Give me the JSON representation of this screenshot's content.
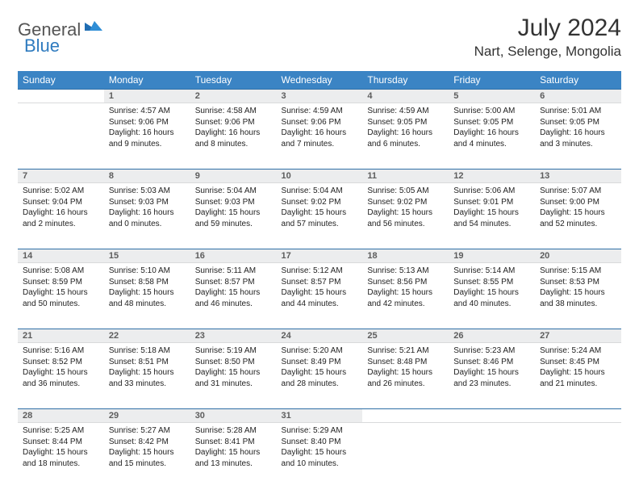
{
  "logo": {
    "part1": "General",
    "part2": "Blue"
  },
  "title": "July 2024",
  "location": "Nart, Selenge, Mongolia",
  "header_bg": "#3b84c4",
  "day_headers": [
    "Sunday",
    "Monday",
    "Tuesday",
    "Wednesday",
    "Thursday",
    "Friday",
    "Saturday"
  ],
  "weeks": [
    {
      "nums": [
        "",
        "1",
        "2",
        "3",
        "4",
        "5",
        "6"
      ],
      "cells": [
        null,
        {
          "sunrise": "4:57 AM",
          "sunset": "9:06 PM",
          "daylight": "16 hours and 9 minutes."
        },
        {
          "sunrise": "4:58 AM",
          "sunset": "9:06 PM",
          "daylight": "16 hours and 8 minutes."
        },
        {
          "sunrise": "4:59 AM",
          "sunset": "9:06 PM",
          "daylight": "16 hours and 7 minutes."
        },
        {
          "sunrise": "4:59 AM",
          "sunset": "9:05 PM",
          "daylight": "16 hours and 6 minutes."
        },
        {
          "sunrise": "5:00 AM",
          "sunset": "9:05 PM",
          "daylight": "16 hours and 4 minutes."
        },
        {
          "sunrise": "5:01 AM",
          "sunset": "9:05 PM",
          "daylight": "16 hours and 3 minutes."
        }
      ]
    },
    {
      "nums": [
        "7",
        "8",
        "9",
        "10",
        "11",
        "12",
        "13"
      ],
      "cells": [
        {
          "sunrise": "5:02 AM",
          "sunset": "9:04 PM",
          "daylight": "16 hours and 2 minutes."
        },
        {
          "sunrise": "5:03 AM",
          "sunset": "9:03 PM",
          "daylight": "16 hours and 0 minutes."
        },
        {
          "sunrise": "5:04 AM",
          "sunset": "9:03 PM",
          "daylight": "15 hours and 59 minutes."
        },
        {
          "sunrise": "5:04 AM",
          "sunset": "9:02 PM",
          "daylight": "15 hours and 57 minutes."
        },
        {
          "sunrise": "5:05 AM",
          "sunset": "9:02 PM",
          "daylight": "15 hours and 56 minutes."
        },
        {
          "sunrise": "5:06 AM",
          "sunset": "9:01 PM",
          "daylight": "15 hours and 54 minutes."
        },
        {
          "sunrise": "5:07 AM",
          "sunset": "9:00 PM",
          "daylight": "15 hours and 52 minutes."
        }
      ]
    },
    {
      "nums": [
        "14",
        "15",
        "16",
        "17",
        "18",
        "19",
        "20"
      ],
      "cells": [
        {
          "sunrise": "5:08 AM",
          "sunset": "8:59 PM",
          "daylight": "15 hours and 50 minutes."
        },
        {
          "sunrise": "5:10 AM",
          "sunset": "8:58 PM",
          "daylight": "15 hours and 48 minutes."
        },
        {
          "sunrise": "5:11 AM",
          "sunset": "8:57 PM",
          "daylight": "15 hours and 46 minutes."
        },
        {
          "sunrise": "5:12 AM",
          "sunset": "8:57 PM",
          "daylight": "15 hours and 44 minutes."
        },
        {
          "sunrise": "5:13 AM",
          "sunset": "8:56 PM",
          "daylight": "15 hours and 42 minutes."
        },
        {
          "sunrise": "5:14 AM",
          "sunset": "8:55 PM",
          "daylight": "15 hours and 40 minutes."
        },
        {
          "sunrise": "5:15 AM",
          "sunset": "8:53 PM",
          "daylight": "15 hours and 38 minutes."
        }
      ]
    },
    {
      "nums": [
        "21",
        "22",
        "23",
        "24",
        "25",
        "26",
        "27"
      ],
      "cells": [
        {
          "sunrise": "5:16 AM",
          "sunset": "8:52 PM",
          "daylight": "15 hours and 36 minutes."
        },
        {
          "sunrise": "5:18 AM",
          "sunset": "8:51 PM",
          "daylight": "15 hours and 33 minutes."
        },
        {
          "sunrise": "5:19 AM",
          "sunset": "8:50 PM",
          "daylight": "15 hours and 31 minutes."
        },
        {
          "sunrise": "5:20 AM",
          "sunset": "8:49 PM",
          "daylight": "15 hours and 28 minutes."
        },
        {
          "sunrise": "5:21 AM",
          "sunset": "8:48 PM",
          "daylight": "15 hours and 26 minutes."
        },
        {
          "sunrise": "5:23 AM",
          "sunset": "8:46 PM",
          "daylight": "15 hours and 23 minutes."
        },
        {
          "sunrise": "5:24 AM",
          "sunset": "8:45 PM",
          "daylight": "15 hours and 21 minutes."
        }
      ]
    },
    {
      "nums": [
        "28",
        "29",
        "30",
        "31",
        "",
        "",
        ""
      ],
      "cells": [
        {
          "sunrise": "5:25 AM",
          "sunset": "8:44 PM",
          "daylight": "15 hours and 18 minutes."
        },
        {
          "sunrise": "5:27 AM",
          "sunset": "8:42 PM",
          "daylight": "15 hours and 15 minutes."
        },
        {
          "sunrise": "5:28 AM",
          "sunset": "8:41 PM",
          "daylight": "15 hours and 13 minutes."
        },
        {
          "sunrise": "5:29 AM",
          "sunset": "8:40 PM",
          "daylight": "15 hours and 10 minutes."
        },
        null,
        null,
        null
      ]
    }
  ],
  "labels": {
    "sunrise": "Sunrise: ",
    "sunset": "Sunset: ",
    "daylight": "Daylight: "
  }
}
